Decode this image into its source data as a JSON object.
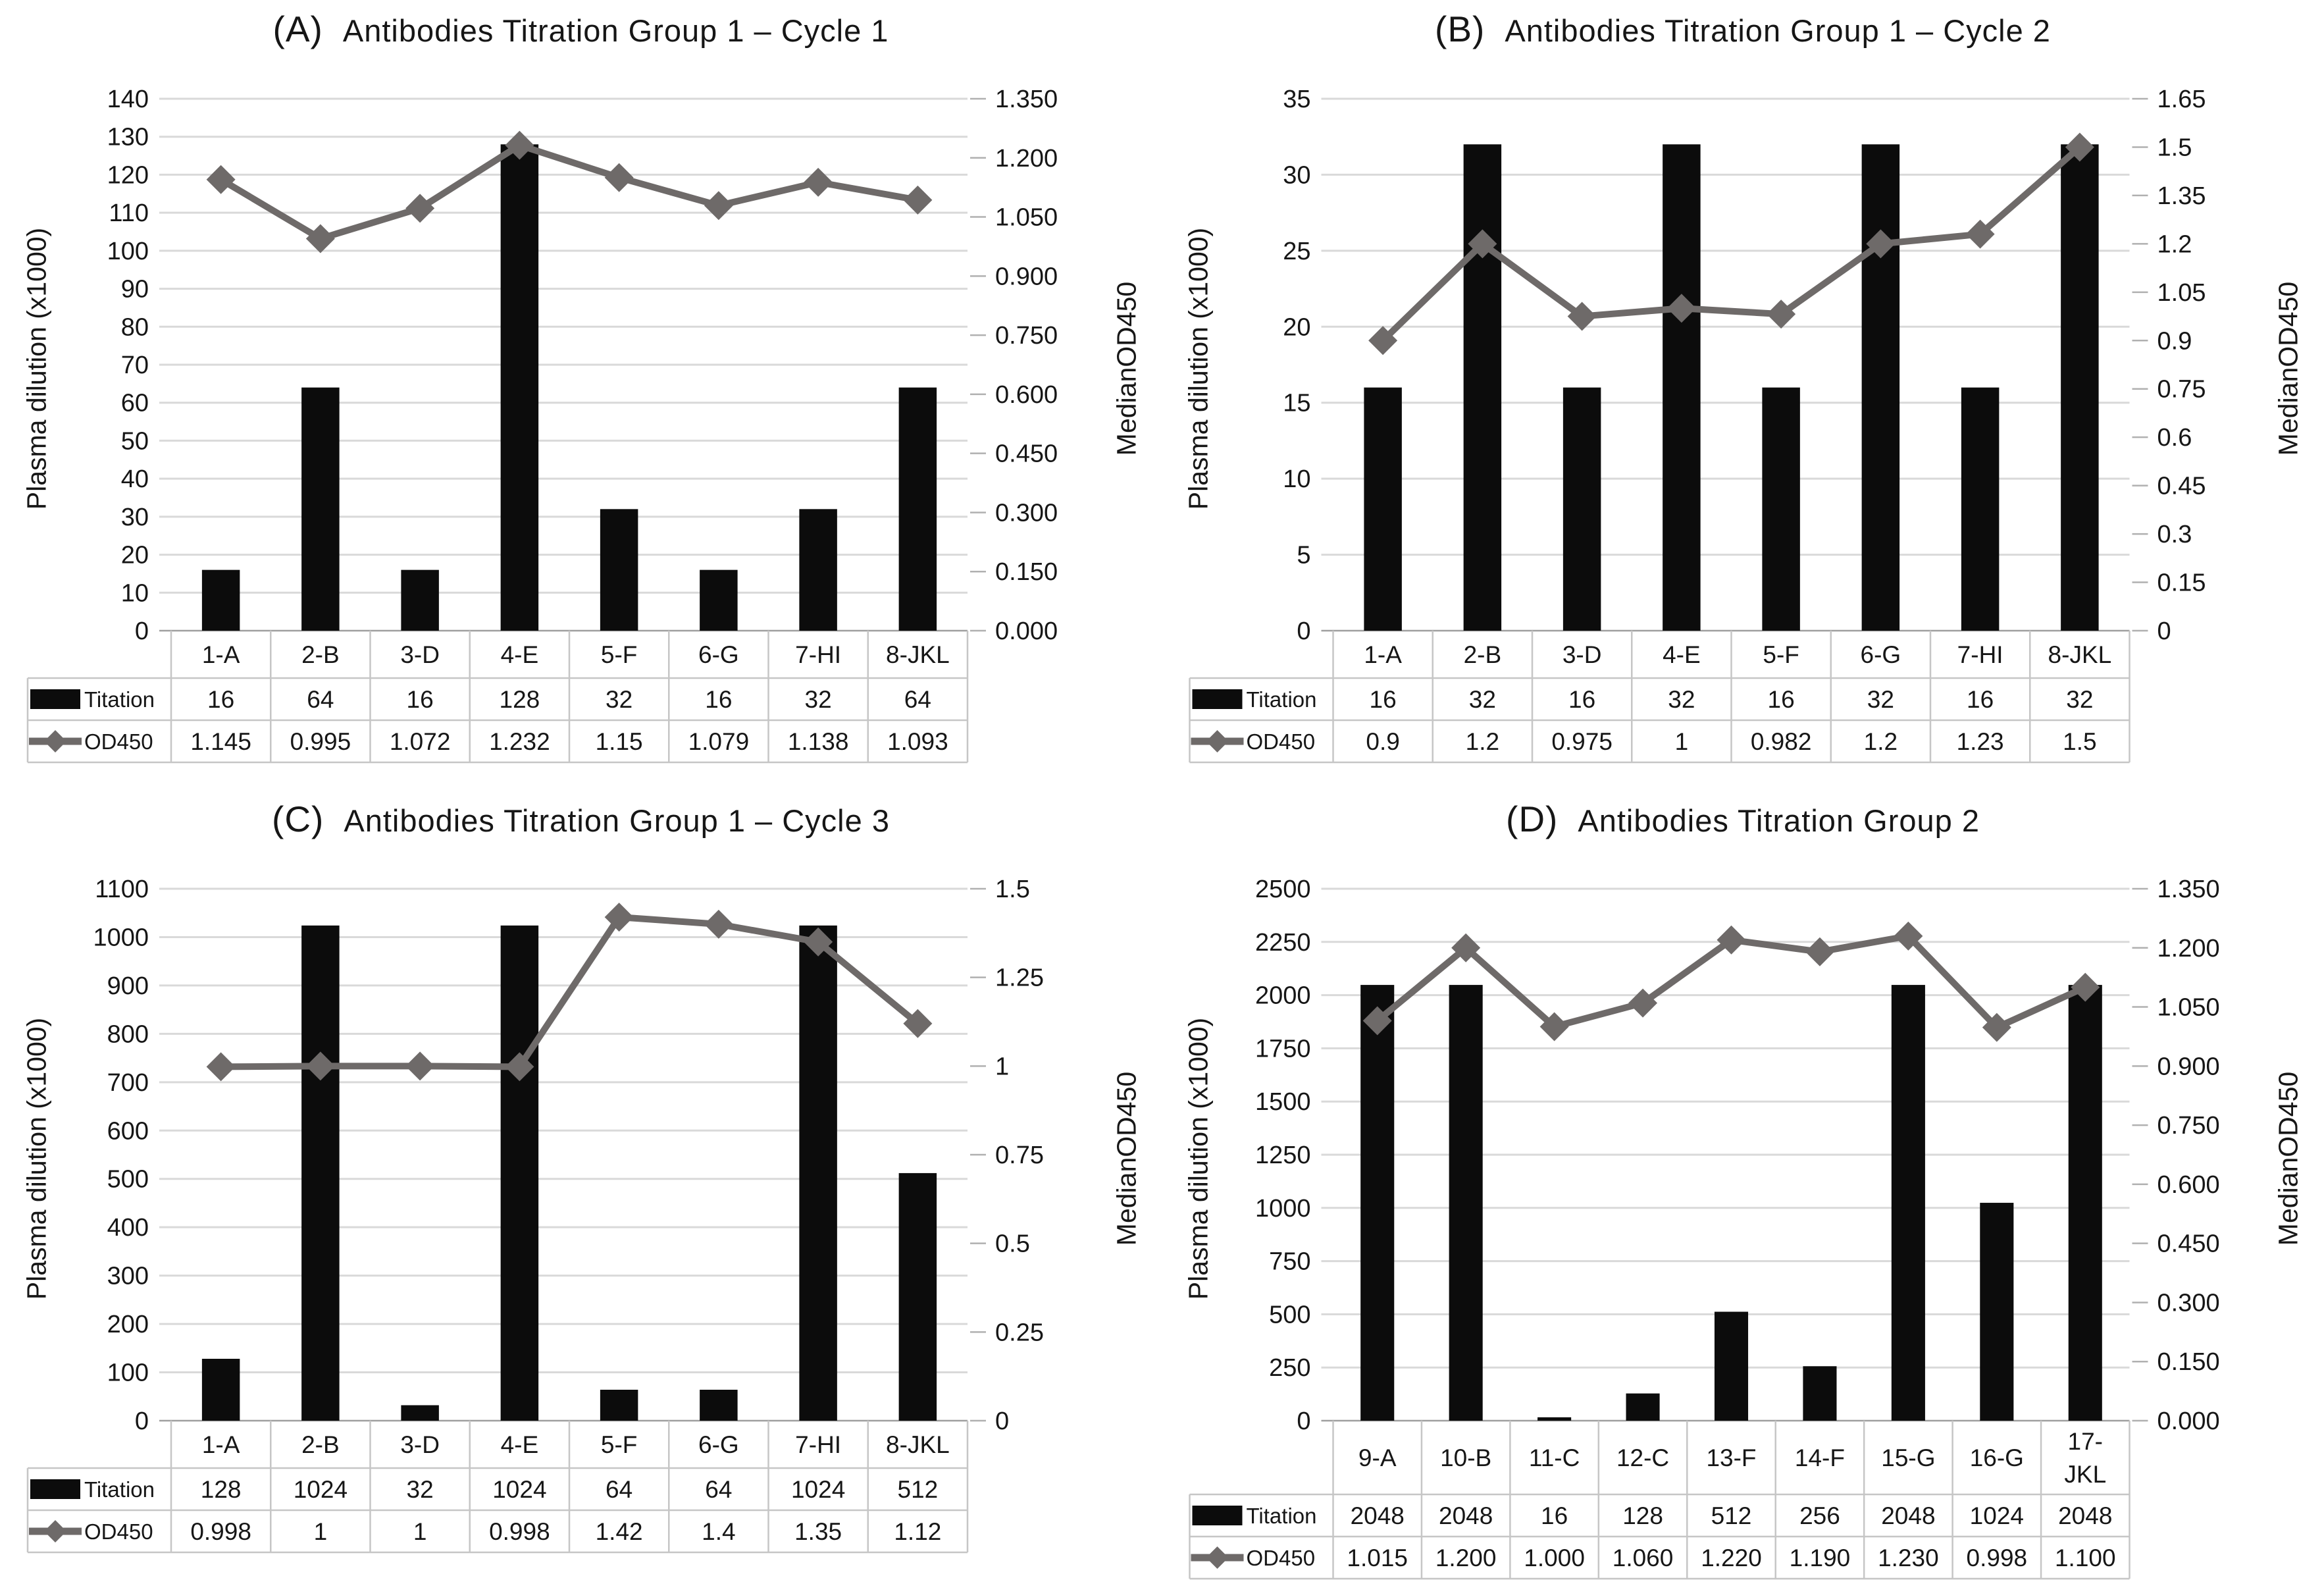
{
  "figure_colors": {
    "bar": "#0c0c0c",
    "line": "#6e6a69",
    "grid": "#d9d9d9",
    "axis_line": "#9f9f9f",
    "tick": "#b0b0b0",
    "table_border": "#c6c6c6",
    "text": "#161616"
  },
  "chart_data": [
    {
      "type": "bar",
      "panel_label": "(A)",
      "title": "Antibodies Titration Group 1 – Cycle 1",
      "categories": [
        "1-A",
        "2-B",
        "3-D",
        "4-E",
        "5-F",
        "6-G",
        "7-HI",
        "8-JKL"
      ],
      "left_axis": {
        "label": "Plasma dilution (x1000)",
        "min": 0,
        "max": 140,
        "tick_labels": [
          "0",
          "10",
          "20",
          "30",
          "40",
          "50",
          "60",
          "70",
          "80",
          "90",
          "100",
          "110",
          "120",
          "130",
          "140"
        ]
      },
      "right_axis": {
        "label": "MedianOD450",
        "min": 0,
        "max": 1.35,
        "tick_labels": [
          "0.000",
          "0.150",
          "0.300",
          "0.450",
          "0.600",
          "0.750",
          "0.900",
          "1.050",
          "1.200",
          "1.350"
        ]
      },
      "grid": "horizontal",
      "legend_position": "table-left",
      "series": [
        {
          "name": "Titation",
          "type": "bar",
          "values": [
            16,
            64,
            16,
            128,
            32,
            16,
            32,
            64
          ],
          "labels": [
            "16",
            "64",
            "16",
            "128",
            "32",
            "16",
            "32",
            "64"
          ]
        },
        {
          "name": "OD450",
          "type": "line",
          "values": [
            1.145,
            0.995,
            1.072,
            1.232,
            1.15,
            1.079,
            1.138,
            1.093
          ],
          "labels": [
            "1.145",
            "0.995",
            "1.072",
            "1.232",
            "1.15",
            "1.079",
            "1.138",
            "1.093"
          ]
        }
      ]
    },
    {
      "type": "bar",
      "panel_label": "(B)",
      "title": "Antibodies Titration Group 1 – Cycle 2",
      "categories": [
        "1-A",
        "2-B",
        "3-D",
        "4-E",
        "5-F",
        "6-G",
        "7-HI",
        "8-JKL"
      ],
      "left_axis": {
        "label": "Plasma dilution (x1000)",
        "min": 0,
        "max": 35,
        "tick_labels": [
          "0",
          "5",
          "10",
          "15",
          "20",
          "25",
          "30",
          "35"
        ]
      },
      "right_axis": {
        "label": "MedianOD450",
        "min": 0,
        "max": 1.65,
        "tick_labels": [
          "0",
          "0.15",
          "0.3",
          "0.45",
          "0.6",
          "0.75",
          "0.9",
          "1.05",
          "1.2",
          "1.35",
          "1.5",
          "1.65"
        ]
      },
      "grid": "horizontal",
      "legend_position": "table-left",
      "series": [
        {
          "name": "Titation",
          "type": "bar",
          "values": [
            16,
            32,
            16,
            32,
            16,
            32,
            16,
            32
          ],
          "labels": [
            "16",
            "32",
            "16",
            "32",
            "16",
            "32",
            "16",
            "32"
          ]
        },
        {
          "name": "OD450",
          "type": "line",
          "values": [
            0.9,
            1.2,
            0.975,
            1,
            0.982,
            1.2,
            1.23,
            1.5
          ],
          "labels": [
            "0.9",
            "1.2",
            "0.975",
            "1",
            "0.982",
            "1.2",
            "1.23",
            "1.5"
          ]
        }
      ]
    },
    {
      "type": "bar",
      "panel_label": "(C)",
      "title": "Antibodies Titration Group 1 – Cycle 3",
      "categories": [
        "1-A",
        "2-B",
        "3-D",
        "4-E",
        "5-F",
        "6-G",
        "7-HI",
        "8-JKL"
      ],
      "left_axis": {
        "label": "Plasma dilution (x1000)",
        "min": 0,
        "max": 1100,
        "tick_labels": [
          "0",
          "100",
          "200",
          "300",
          "400",
          "500",
          "600",
          "700",
          "800",
          "900",
          "1000",
          "1100"
        ]
      },
      "right_axis": {
        "label": "MedianOD450",
        "min": 0,
        "max": 1.5,
        "tick_labels": [
          "0",
          "0.25",
          "0.5",
          "0.75",
          "1",
          "1.25",
          "1.5"
        ]
      },
      "grid": "horizontal",
      "legend_position": "table-left",
      "series": [
        {
          "name": "Titation",
          "type": "bar",
          "values": [
            128,
            1024,
            32,
            1024,
            64,
            64,
            1024,
            512
          ],
          "labels": [
            "128",
            "1024",
            "32",
            "1024",
            "64",
            "64",
            "1024",
            "512"
          ]
        },
        {
          "name": "OD450",
          "type": "line",
          "values": [
            0.998,
            1,
            1,
            0.998,
            1.42,
            1.4,
            1.35,
            1.12
          ],
          "labels": [
            "0.998",
            "1",
            "1",
            "0.998",
            "1.42",
            "1.4",
            "1.35",
            "1.12"
          ]
        }
      ]
    },
    {
      "type": "bar",
      "panel_label": "(D)",
      "title": "Antibodies Titration Group 2",
      "categories": [
        "9-A",
        "10-B",
        "11-C",
        "12-C",
        "13-F",
        "14-F",
        "15-G",
        "16-G",
        "17-\nJKL"
      ],
      "left_axis": {
        "label": "Plasma dilution (x1000)",
        "min": 0,
        "max": 2500,
        "tick_labels": [
          "0",
          "250",
          "500",
          "750",
          "1000",
          "1250",
          "1500",
          "1750",
          "2000",
          "2250",
          "2500"
        ]
      },
      "right_axis": {
        "label": "MedianOD450",
        "min": 0,
        "max": 1.35,
        "tick_labels": [
          "0.000",
          "0.150",
          "0.300",
          "0.450",
          "0.600",
          "0.750",
          "0.900",
          "1.050",
          "1.200",
          "1.350"
        ]
      },
      "grid": "horizontal",
      "legend_position": "table-left",
      "series": [
        {
          "name": "Titation",
          "type": "bar",
          "values": [
            2048,
            2048,
            16,
            128,
            512,
            256,
            2048,
            1024,
            2048
          ],
          "labels": [
            "2048",
            "2048",
            "16",
            "128",
            "512",
            "256",
            "2048",
            "1024",
            "2048"
          ]
        },
        {
          "name": "OD450",
          "type": "line",
          "values": [
            1.015,
            1.2,
            1,
            1.06,
            1.22,
            1.19,
            1.23,
            0.998,
            1.1
          ],
          "labels": [
            "1.015",
            "1.200",
            "1.000",
            "1.060",
            "1.220",
            "1.190",
            "1.230",
            "0.998",
            "1.100"
          ]
        }
      ]
    }
  ]
}
